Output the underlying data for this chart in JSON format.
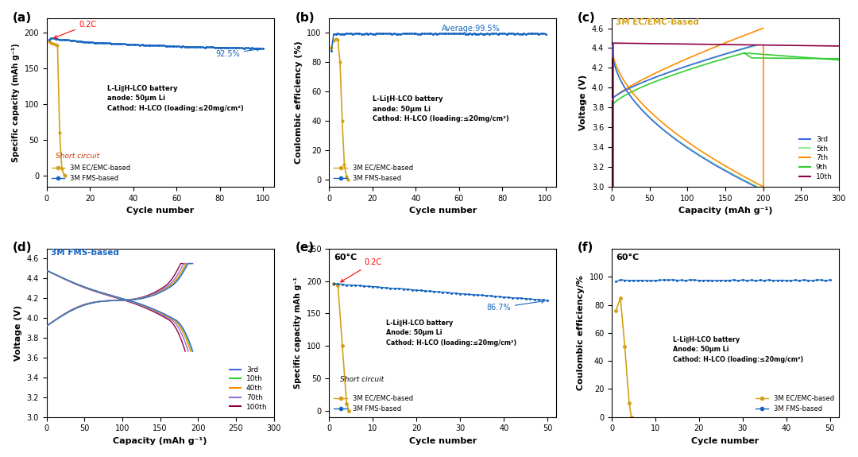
{
  "fig_width": 10.8,
  "fig_height": 5.75,
  "panel_a": {
    "label": "(a)",
    "xlabel": "Cycle number",
    "ylabel": "Specific capacity (mAh g⁻¹)",
    "xlim": [
      0,
      105
    ],
    "ylim": [
      -15,
      220
    ],
    "xticks": [
      0,
      20,
      40,
      60,
      80,
      100
    ],
    "yticks": [
      0,
      50,
      100,
      150,
      200
    ],
    "ec_color": "#D4A017",
    "fms_color": "#1565C0",
    "ec_label": "3M EC/EMC-based",
    "fms_label": "3M FMS-based",
    "annotation_02C": "0.2C",
    "annotation_92": "92.5%",
    "annotation_short": "Short circuit",
    "text_battery": "L-Li∥H-LCO battery\nanode: 50μm Li\nCathod: H-LCO (loading:≤20mg/cm²)"
  },
  "panel_b": {
    "label": "(b)",
    "xlabel": "Cycle number",
    "ylabel": "Coulombic efficiency (%)",
    "xlim": [
      0,
      105
    ],
    "ylim": [
      -5,
      110
    ],
    "xticks": [
      0,
      20,
      40,
      60,
      80,
      100
    ],
    "yticks": [
      0,
      20,
      40,
      60,
      80,
      100
    ],
    "ec_color": "#D4A017",
    "fms_color": "#1565C0",
    "ec_label": "3M EC/EMC-based",
    "fms_label": "3M FMS-based",
    "annotation_avg": "Average:99.5%",
    "text_battery": "L-Li∥H-LCO battery\nanode: 50μm Li\nCathod: H-LCO (loading:≤20mg/cm²)"
  },
  "panel_c": {
    "label": "(c)",
    "title": "3M EC/EMC-based",
    "title_color": "#D4A017",
    "xlabel": "Capacity (mAh g⁻¹)",
    "ylabel": "Voltage (V)",
    "xlim": [
      0,
      300
    ],
    "ylim": [
      3.0,
      4.7
    ],
    "xticks": [
      0,
      50,
      100,
      150,
      200,
      250,
      300
    ],
    "yticks": [
      3.0,
      3.2,
      3.4,
      3.6,
      3.8,
      4.0,
      4.2,
      4.4,
      4.6
    ],
    "cycle_colors": [
      "#4169E1",
      "#90EE90",
      "#FF8C00",
      "#32CD32",
      "#8B0045"
    ],
    "cycle_labels": [
      "3rd",
      "5th",
      "7th",
      "9th",
      "10th"
    ]
  },
  "panel_d": {
    "label": "(d)",
    "title": "3M FMS-based",
    "title_color": "#1565C0",
    "xlabel": "Capacity (mAh g⁻¹)",
    "ylabel": "Voltage (V)",
    "xlim": [
      0,
      300
    ],
    "ylim": [
      3.0,
      4.7
    ],
    "xticks": [
      0,
      50,
      100,
      150,
      200,
      250,
      300
    ],
    "yticks": [
      3.0,
      3.2,
      3.4,
      3.6,
      3.8,
      4.0,
      4.2,
      4.4,
      4.6
    ],
    "cycle_colors": [
      "#4169E1",
      "#32CD32",
      "#FF8C00",
      "#9370DB",
      "#8B0045"
    ],
    "cycle_labels": [
      "3rd",
      "10th",
      "40th",
      "70th",
      "100th"
    ]
  },
  "panel_e": {
    "label": "(e)",
    "title": "60°C",
    "xlabel": "Cycle number",
    "ylabel": "Specific capacity mAh g⁻¹",
    "xlim": [
      0,
      52
    ],
    "ylim": [
      -10,
      250
    ],
    "xticks": [
      0,
      10,
      20,
      30,
      40,
      50
    ],
    "yticks": [
      0,
      50,
      100,
      150,
      200,
      250
    ],
    "ec_color": "#D4A017",
    "fms_color": "#1565C0",
    "ec_label": "3M EC/EMC-based",
    "fms_label": "3M FMS-based",
    "annotation_02C": "0.2C",
    "annotation_867": "86.7%",
    "annotation_short": "Short circuit",
    "text_battery": "L-Li∥H-LCO battery\nAnode: 50μm Li\nCathod: H-LCO (loading:≤20mg/cm²)"
  },
  "panel_f": {
    "label": "(f)",
    "title": "60°C",
    "xlabel": "Cycle number",
    "ylabel": "Coulombic efficiency/%",
    "xlim": [
      0,
      52
    ],
    "ylim": [
      0,
      120
    ],
    "xticks": [
      0,
      10,
      20,
      30,
      40,
      50
    ],
    "yticks": [
      0,
      20,
      40,
      60,
      80,
      100
    ],
    "ec_color": "#D4A017",
    "fms_color": "#1565C0",
    "ec_label": "3M EC/EMC-based",
    "fms_label": "3M FMS-based",
    "text_battery": "L-Li∥H-LCO battery\nAnode: 50μm Li\nCathod: H-LCO (loading:≤20mg/cm²)"
  }
}
